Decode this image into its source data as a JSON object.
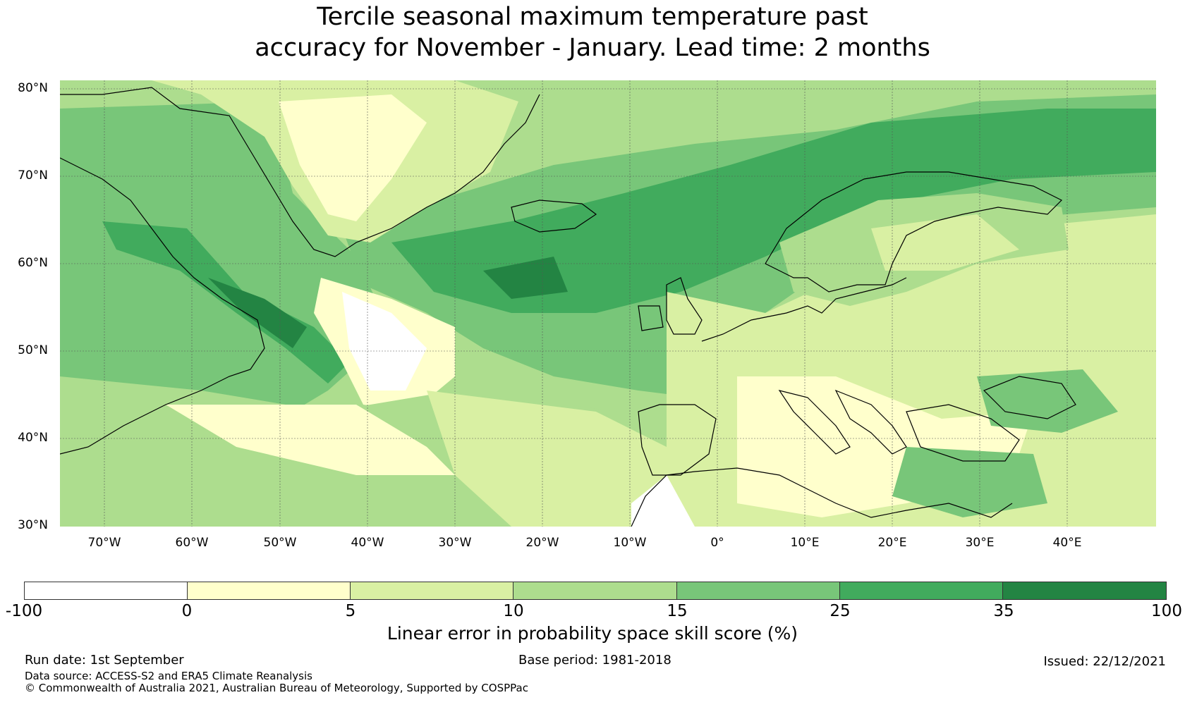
{
  "title_line1": "Tercile seasonal maximum temperature past",
  "title_line2": "accuracy for November - January. Lead time: 2 months",
  "lat_labels": [
    "80°N",
    "70°N",
    "60°N",
    "50°N",
    "40°N",
    "30°N"
  ],
  "lon_labels": [
    "70°W",
    "60°W",
    "50°W",
    "40°W",
    "30°W",
    "20°W",
    "10°W",
    "0°",
    "10°E",
    "20°E",
    "30°E",
    "40°E"
  ],
  "colorbar": {
    "ticks": [
      "-100",
      "0",
      "5",
      "10",
      "15",
      "25",
      "35",
      "100"
    ],
    "colors": [
      "#ffffff",
      "#ffffcc",
      "#d9f0a3",
      "#addd8e",
      "#78c679",
      "#41ab5d",
      "#238443"
    ],
    "label": "Linear error in probability space skill score (%)"
  },
  "footer": {
    "run_date": "Run date: 1st September",
    "base_period": "Base period: 1981-2018",
    "issued": "Issued: 22/12/2021",
    "data_source": "Data source: ACCESS-S2 and ERA5 Climate Reanalysis",
    "copyright": "© Commonwealth of Australia 2021, Australian Bureau of Meteorology, Supported by COSPPac"
  }
}
